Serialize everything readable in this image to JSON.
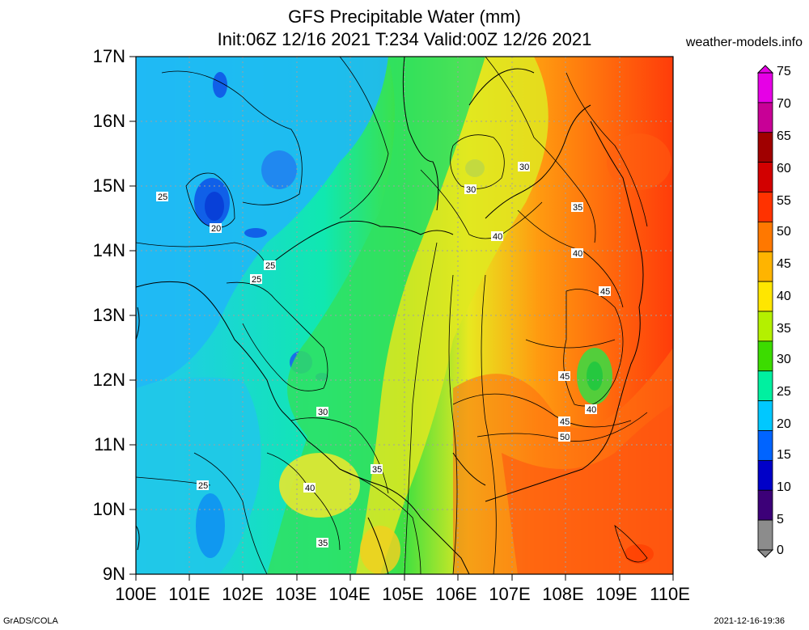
{
  "title": {
    "line1": "GFS Precipitable Water (mm)",
    "line2": "Init:06Z 12/16 2021 T:234 Valid:00Z 12/26 2021",
    "site": "weather-models.info"
  },
  "footer": {
    "left": "GrADS/COLA",
    "right": "2021-12-16-19:36"
  },
  "axes": {
    "y_ticks": [
      "17N",
      "16N",
      "15N",
      "14N",
      "13N",
      "12N",
      "11N",
      "10N",
      "9N"
    ],
    "x_ticks": [
      "100E",
      "101E",
      "102E",
      "103E",
      "104E",
      "105E",
      "106E",
      "107E",
      "108E",
      "109E",
      "110E"
    ]
  },
  "colorbar": {
    "levels": [
      "75",
      "70",
      "65",
      "60",
      "55",
      "50",
      "45",
      "40",
      "35",
      "30",
      "25",
      "20",
      "15",
      "10",
      "5",
      "0"
    ],
    "colors": [
      "#e600e6",
      "#c80096",
      "#a00000",
      "#d20000",
      "#ff3200",
      "#ff7800",
      "#ffb400",
      "#ffe600",
      "#b4f000",
      "#3cdc00",
      "#00f0a0",
      "#00c8ff",
      "#0064ff",
      "#0000c8",
      "#3c0078",
      "#8c8c8c"
    ]
  },
  "contour_labels": [
    {
      "text": "25"
    },
    {
      "text": "20"
    },
    {
      "text": "25"
    },
    {
      "text": "25"
    },
    {
      "text": "30"
    },
    {
      "text": "30"
    },
    {
      "text": "40"
    },
    {
      "text": "35"
    },
    {
      "text": "40"
    },
    {
      "text": "45"
    },
    {
      "text": "45"
    },
    {
      "text": "40"
    },
    {
      "text": "45"
    },
    {
      "text": "50"
    },
    {
      "text": "30"
    },
    {
      "text": "35"
    },
    {
      "text": "40"
    },
    {
      "text": "25"
    },
    {
      "text": "35"
    }
  ]
}
